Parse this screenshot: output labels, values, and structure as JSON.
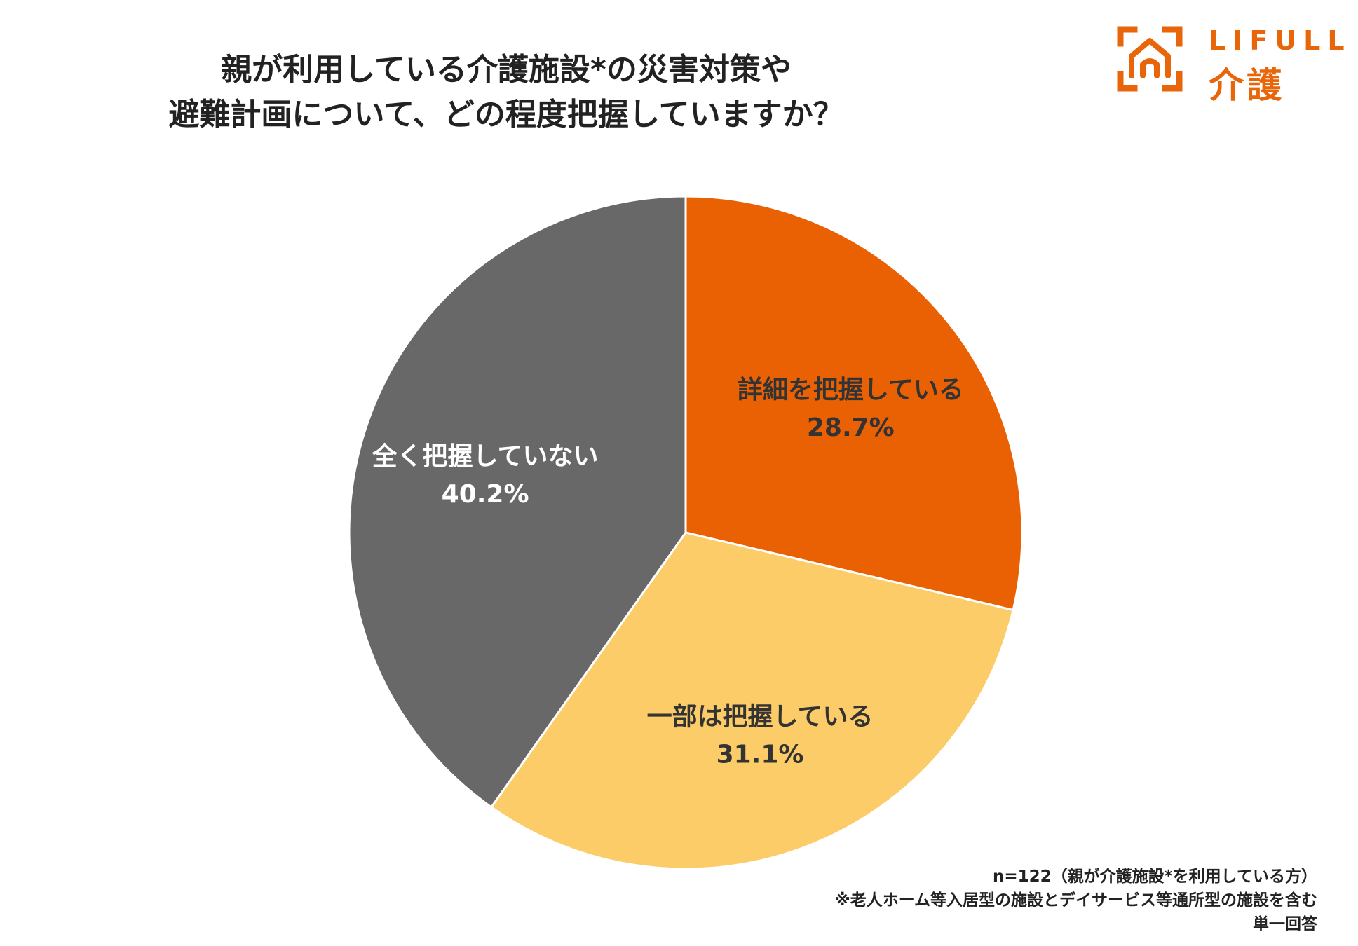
{
  "header": {
    "title_line1": "親が利用している介護施設*の災害対策や",
    "title_line2": "避難計画について、どの程度把握していますか？"
  },
  "logo": {
    "brand": "LIFULL",
    "sub": "介護",
    "color": "#e8650a",
    "icon": "house-bracket-icon"
  },
  "chart_data": {
    "type": "pie",
    "title": "親が利用している介護施設*の災害対策や避難計画について、どの程度把握していますか？",
    "start_angle_deg": 0,
    "direction": "clockwise",
    "slices": [
      {
        "label": "詳細を把握している",
        "value": 28.7,
        "display": "28.7%",
        "color": "#ea6104",
        "text_color": "#333333"
      },
      {
        "label": "一部は把握している",
        "value": 31.1,
        "display": "31.1%",
        "color": "#fccc69",
        "text_color": "#333333"
      },
      {
        "label": "全く把握していない",
        "value": 40.2,
        "display": "40.2%",
        "color": "#686868",
        "text_color": "#ffffff"
      }
    ],
    "legend": "none"
  },
  "notes": {
    "sample": "n=122（親が介護施設*を利用している方）",
    "footnote": "※老人ホーム等入居型の施設とデイサービス等通所型の施設を含む",
    "answer_type": "単一回答"
  }
}
